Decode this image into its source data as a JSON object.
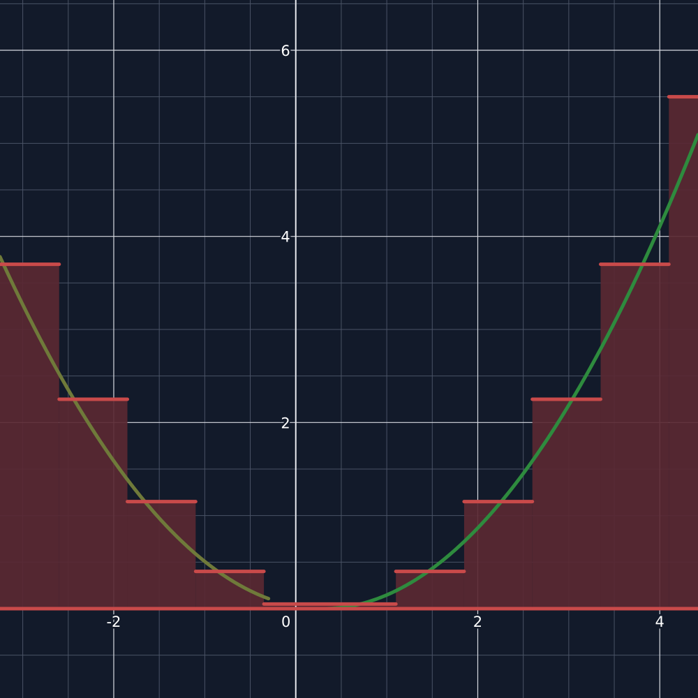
{
  "chart_data": {
    "type": "line",
    "title": "",
    "xlabel": "",
    "ylabel": "",
    "xlim": [
      -3.25,
      4.42
    ],
    "ylim": [
      -0.96,
      6.54
    ],
    "grid": true,
    "x_ticks": [
      {
        "value": -2,
        "label": "-2"
      },
      {
        "value": 0,
        "label": "0"
      },
      {
        "value": 2,
        "label": "2"
      },
      {
        "value": 4,
        "label": "4"
      }
    ],
    "y_ticks": [
      {
        "value": 2,
        "label": "2"
      },
      {
        "value": 4,
        "label": "4"
      },
      {
        "value": 6,
        "label": "6"
      }
    ],
    "series": [
      {
        "kind": "curve",
        "function": "0.3*(x-0.3)^2",
        "x_range": [
          -3.25,
          4.42
        ],
        "color": "#2e8b3e",
        "left_color": "#6f7a3a"
      },
      {
        "kind": "step",
        "color": "#c94a4a",
        "fill": "#5a2832",
        "steps": [
          {
            "x0": -3.25,
            "x1": -2.6,
            "y": 3.7
          },
          {
            "x0": -2.6,
            "x1": -1.85,
            "y": 2.25
          },
          {
            "x0": -1.85,
            "x1": -1.1,
            "y": 1.15
          },
          {
            "x0": -1.1,
            "x1": -0.35,
            "y": 0.4
          },
          {
            "x0": -0.35,
            "x1": 1.1,
            "y": 0.05
          },
          {
            "x0": 1.1,
            "x1": 1.85,
            "y": 0.4
          },
          {
            "x0": 1.85,
            "x1": 2.6,
            "y": 1.15
          },
          {
            "x0": 2.6,
            "x1": 3.35,
            "y": 2.25
          },
          {
            "x0": 3.35,
            "x1": 4.1,
            "y": 3.7
          },
          {
            "x0": 4.1,
            "x1": 4.42,
            "y": 5.5
          }
        ]
      }
    ]
  }
}
